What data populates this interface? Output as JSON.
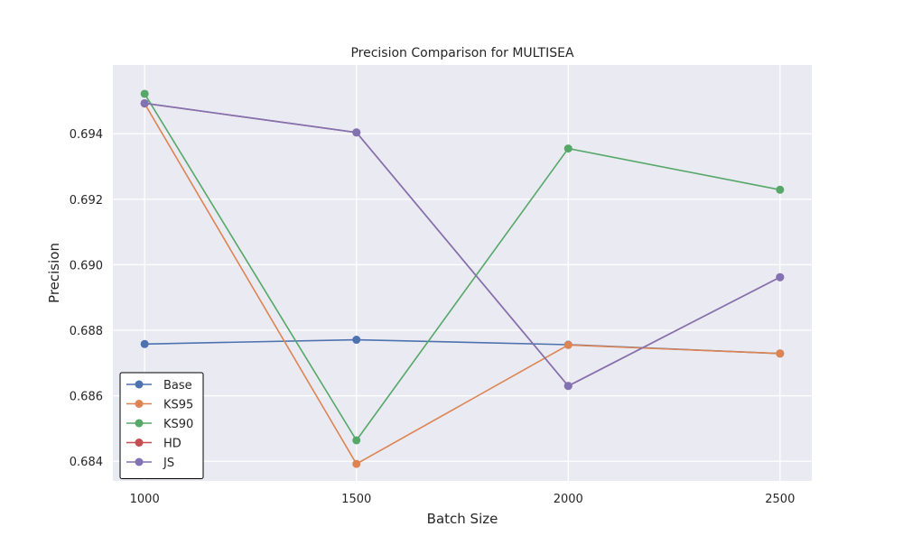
{
  "chart_data": {
    "type": "line",
    "title": "Precision Comparison for MULTISEA",
    "xlabel": "Batch Size",
    "ylabel": "Precision",
    "x": [
      1000,
      1500,
      2000,
      2500
    ],
    "x_tick_labels": [
      "1000",
      "1500",
      "2000",
      "2500"
    ],
    "y_ticks": [
      0.684,
      0.686,
      0.688,
      0.69,
      0.692,
      0.694
    ],
    "y_tick_labels": [
      "0.684",
      "0.686",
      "0.688",
      "0.690",
      "0.692",
      "0.694"
    ],
    "xlim": [
      925,
      2575
    ],
    "ylim": [
      0.6834,
      0.6961
    ],
    "grid": true,
    "legend_position": "lower-left",
    "series": [
      {
        "name": "Base",
        "color": "#4c72b0",
        "values": [
          0.68758,
          0.68771,
          0.68756,
          0.68729
        ]
      },
      {
        "name": "KS95",
        "color": "#dd8452",
        "values": [
          0.69492,
          0.68392,
          0.68755,
          0.68729
        ]
      },
      {
        "name": "KS90",
        "color": "#55a868",
        "values": [
          0.69522,
          0.68464,
          0.69355,
          0.69229
        ]
      },
      {
        "name": "HD",
        "color": "#c44e52",
        "values": [
          0.69493,
          0.69404,
          0.6863,
          0.68962
        ]
      },
      {
        "name": "JS",
        "color": "#8172b3",
        "values": [
          0.69493,
          0.69404,
          0.6863,
          0.68962
        ]
      }
    ]
  }
}
